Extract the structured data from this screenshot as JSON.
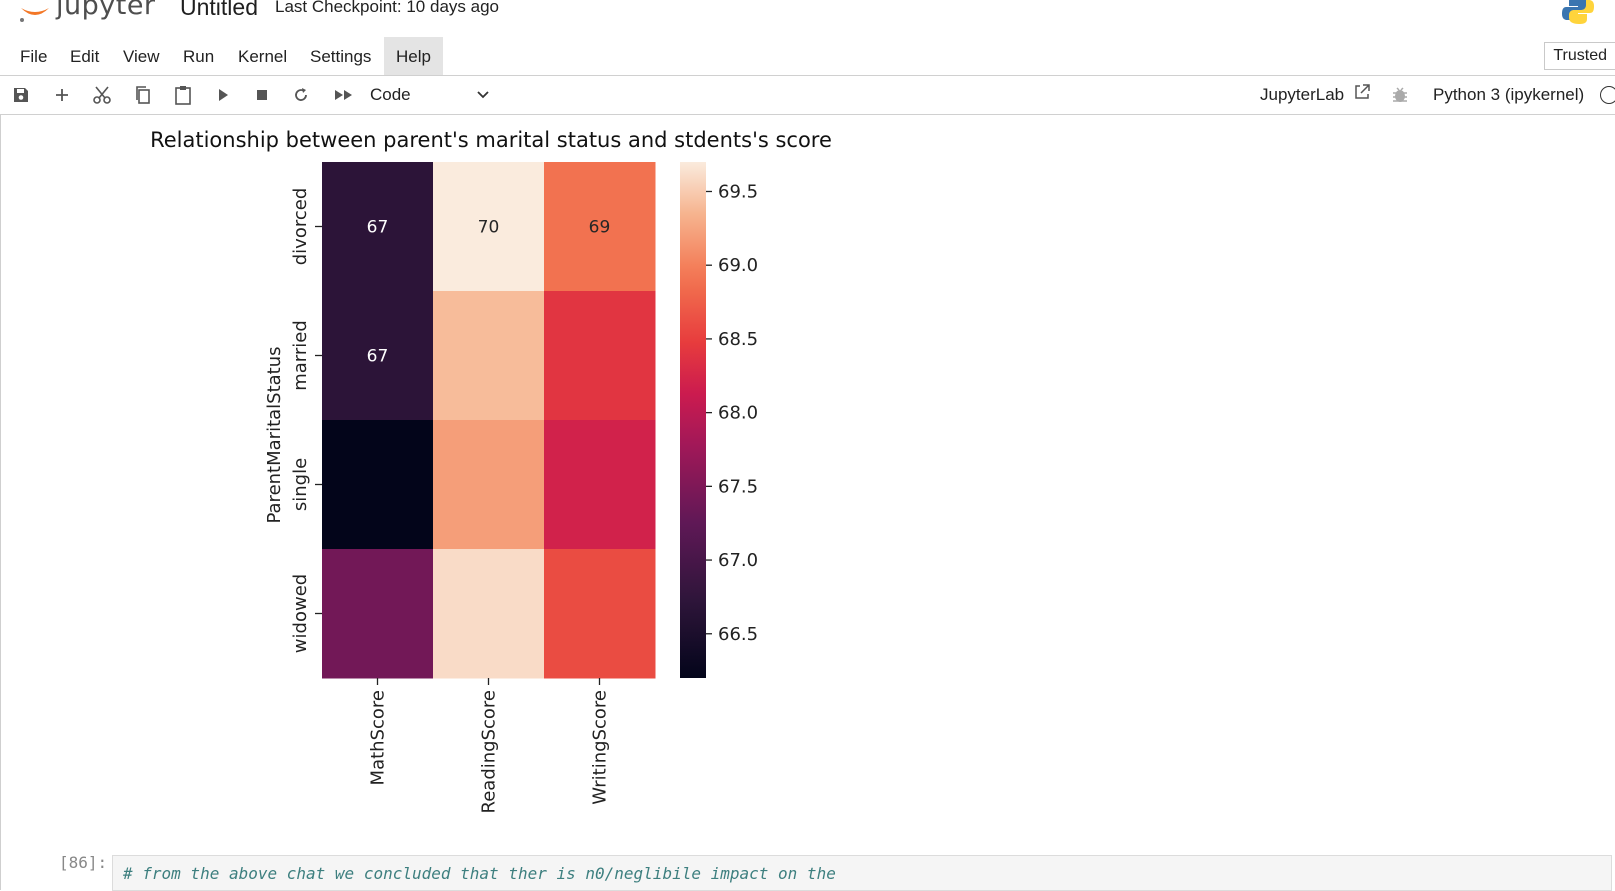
{
  "header": {
    "logo_text": "jupyter",
    "notebook_title": "Untitled",
    "checkpoint": "Last Checkpoint: 10 days ago"
  },
  "menu": {
    "items": [
      "File",
      "Edit",
      "View",
      "Run",
      "Kernel",
      "Settings",
      "Help"
    ],
    "active": "Help",
    "trusted": "Trusted"
  },
  "toolbar": {
    "icons": [
      "save-icon",
      "add-cell-icon",
      "cut-icon",
      "copy-icon",
      "paste-icon",
      "run-icon",
      "stop-icon",
      "restart-icon",
      "run-all-icon"
    ],
    "cell_type": "Code",
    "jupyterlab_label": "JupyterLab",
    "kernel_name": "Python 3 (ipykernel)"
  },
  "next_cell": {
    "prompt": "[86]:",
    "code": "# from the above chat we concluded that ther is n0/neglibile impact on the"
  },
  "colors": {
    "code_comment": "#3d7f7f",
    "accent_orange": "#f37726"
  },
  "chart_data": {
    "type": "heatmap",
    "title": "Relationship between parent's marital status and stdents's score",
    "xlabel": "",
    "ylabel": "ParentMaritalStatus",
    "x_categories": [
      "MathScore",
      "ReadingScore",
      "WritingScore"
    ],
    "y_categories": [
      "divorced",
      "married",
      "single",
      "widowed"
    ],
    "values": [
      [
        66.7,
        69.7,
        68.9
      ],
      [
        66.7,
        69.4,
        68.4
      ],
      [
        66.2,
        69.2,
        68.2
      ],
      [
        67.4,
        69.6,
        68.6
      ]
    ],
    "annotations": [
      [
        "67",
        "70",
        "69"
      ],
      [
        "67",
        "",
        ""
      ],
      [
        "",
        "",
        ""
      ],
      [
        "",
        "",
        ""
      ]
    ],
    "colorbar": {
      "ticks": [
        "66.5",
        "67.0",
        "67.5",
        "68.0",
        "68.5",
        "69.0",
        "69.5"
      ],
      "vmin": 66.2,
      "vmax": 69.7
    },
    "colormap": "rocket"
  }
}
